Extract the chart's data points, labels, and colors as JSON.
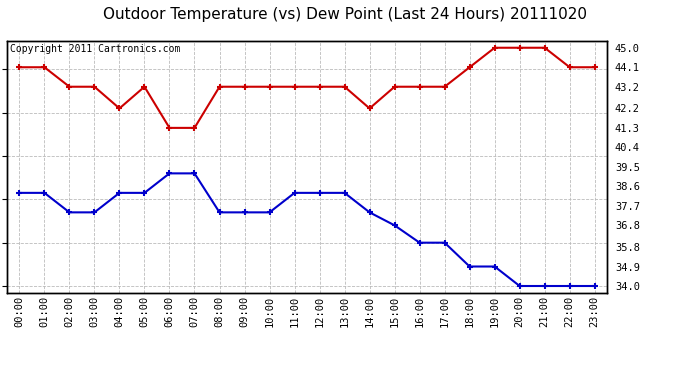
{
  "title": "Outdoor Temperature (vs) Dew Point (Last 24 Hours) 20111020",
  "copyright": "Copyright 2011 Cartronics.com",
  "x_labels": [
    "00:00",
    "01:00",
    "02:00",
    "03:00",
    "04:00",
    "05:00",
    "06:00",
    "07:00",
    "08:00",
    "09:00",
    "10:00",
    "11:00",
    "12:00",
    "13:00",
    "14:00",
    "15:00",
    "16:00",
    "17:00",
    "18:00",
    "19:00",
    "20:00",
    "21:00",
    "22:00",
    "23:00"
  ],
  "temp_values": [
    44.1,
    44.1,
    43.2,
    43.2,
    42.2,
    43.2,
    41.3,
    41.3,
    43.2,
    43.2,
    43.2,
    43.2,
    43.2,
    43.2,
    42.2,
    43.2,
    43.2,
    43.2,
    44.1,
    45.0,
    45.0,
    45.0,
    44.1,
    44.1
  ],
  "dew_values": [
    38.3,
    38.3,
    37.4,
    37.4,
    38.3,
    38.3,
    39.2,
    39.2,
    37.4,
    37.4,
    37.4,
    38.3,
    38.3,
    38.3,
    37.4,
    36.8,
    36.0,
    36.0,
    34.9,
    34.9,
    34.0,
    34.0,
    34.0,
    34.0
  ],
  "temp_color": "#cc0000",
  "dew_color": "#0000cc",
  "ylim": [
    33.7,
    45.3
  ],
  "yticks_right": [
    45.0,
    44.1,
    43.2,
    42.2,
    41.3,
    40.4,
    39.5,
    38.6,
    37.7,
    36.8,
    35.8,
    34.9,
    34.0
  ],
  "background_color": "#ffffff",
  "grid_color": "#bbbbbb",
  "title_fontsize": 11,
  "copyright_fontsize": 7,
  "tick_fontsize": 7.5,
  "marker": "+",
  "markersize": 5,
  "linewidth": 1.5
}
